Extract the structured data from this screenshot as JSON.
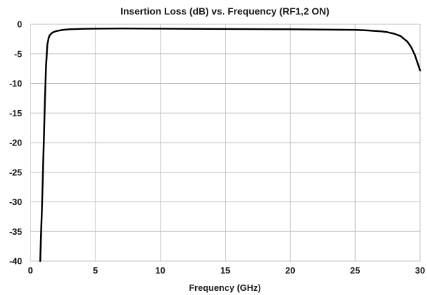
{
  "chart_data": {
    "type": "line",
    "title": "Insertion Loss (dB) vs. Frequency (RF1,2 ON)",
    "xlabel": "Frequency (GHz)",
    "ylabel": "",
    "xlim": [
      0,
      30
    ],
    "ylim": [
      -40,
      0
    ],
    "xticks": [
      0,
      5,
      10,
      15,
      20,
      25,
      30
    ],
    "yticks": [
      0,
      -5,
      -10,
      -15,
      -20,
      -25,
      -30,
      -35,
      -40
    ],
    "grid": true,
    "legend": "none",
    "series": [
      {
        "color": "#000000",
        "x": [
          0.75,
          0.9,
          1.0,
          1.1,
          1.2,
          1.3,
          1.4,
          1.5,
          1.7,
          2.0,
          2.5,
          3.0,
          4.0,
          5.0,
          7.0,
          10.0,
          15.0,
          20.0,
          25.0,
          26.0,
          27.0,
          27.5,
          28.0,
          28.5,
          29.0,
          29.3,
          29.6,
          29.8,
          30.0
        ],
        "y": [
          -40,
          -30,
          -22,
          -14,
          -7,
          -3.5,
          -2.3,
          -1.8,
          -1.4,
          -1.15,
          -0.95,
          -0.85,
          -0.78,
          -0.75,
          -0.72,
          -0.75,
          -0.8,
          -0.85,
          -0.95,
          -1.05,
          -1.2,
          -1.35,
          -1.6,
          -2.0,
          -2.9,
          -3.8,
          -5.2,
          -6.5,
          -7.8
        ]
      }
    ]
  }
}
